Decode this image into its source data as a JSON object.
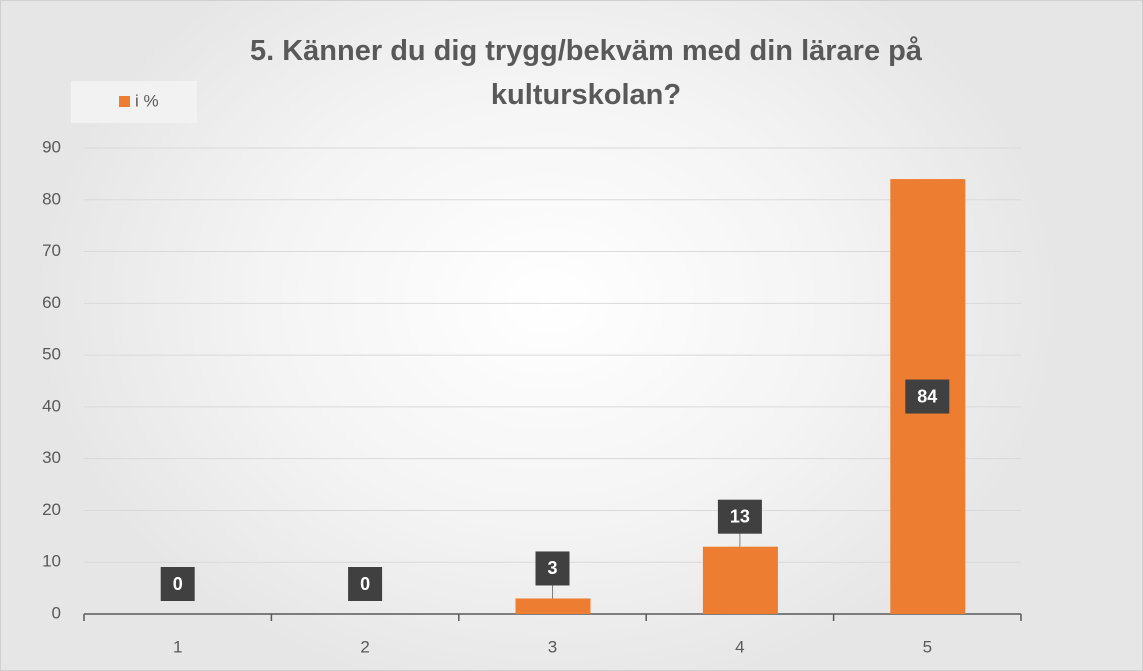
{
  "chart_data": {
    "type": "bar",
    "title": "5. Känner du dig trygg/bekväm med din lärare på kulturskolan?",
    "categories": [
      "1",
      "2",
      "3",
      "4",
      "5"
    ],
    "series": [
      {
        "name": "i %",
        "color": "#ed7d31",
        "values": [
          0,
          0,
          3,
          13,
          84
        ]
      }
    ],
    "ylim": [
      0,
      90
    ],
    "yticks": [
      0,
      10,
      20,
      30,
      40,
      50,
      60,
      70,
      80,
      90
    ],
    "grid": true,
    "legend": "top-left"
  }
}
